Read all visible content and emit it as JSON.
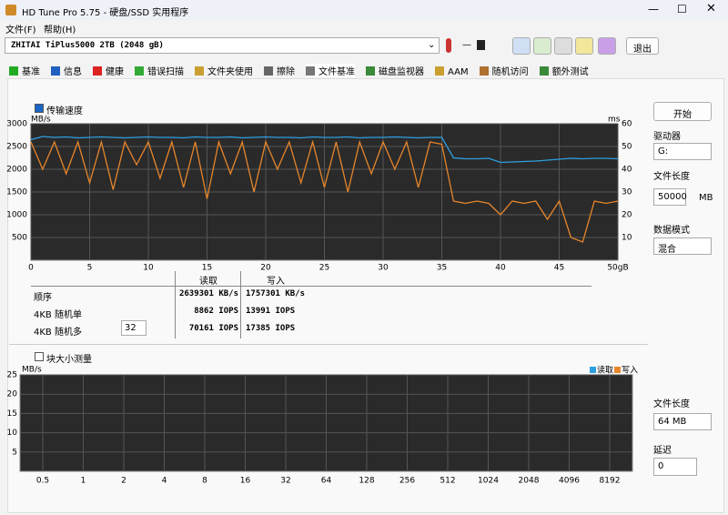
{
  "window": {
    "title": "HD Tune Pro 5.75 - 硬盘/SSD 实用程序"
  },
  "menu": [
    "文件(F)",
    "帮助(H)"
  ],
  "drive": "ZHITAI TiPlus5000 2TB (2048 gB)",
  "temperature": "—",
  "exit_button": "退出",
  "tabs": [
    "基准",
    "信息",
    "健康",
    "错误扫描",
    "文件夹使用",
    "擦除",
    "文件基准",
    "磁盘监视器",
    "AAM",
    "随机访问",
    "额外测试"
  ],
  "transfer": {
    "checkbox": "传输速度",
    "chart_data": {
      "type": "line",
      "y_label": "MB/s",
      "y2_label": "ms",
      "x": [
        0,
        1,
        2,
        3,
        4,
        5,
        6,
        7,
        8,
        9,
        10,
        11,
        12,
        13,
        14,
        15,
        16,
        17,
        18,
        19,
        20,
        21,
        22,
        23,
        24,
        25,
        26,
        27,
        28,
        29,
        30,
        31,
        32,
        33,
        34,
        35,
        36,
        37,
        38,
        39,
        40,
        41,
        42,
        43,
        44,
        45,
        46,
        47,
        48,
        49,
        50
      ],
      "series": [
        {
          "color": "#2f9fe0",
          "values": [
            2650,
            2720,
            2700,
            2710,
            2690,
            2700,
            2710,
            2700,
            2690,
            2700,
            2710,
            2700,
            2700,
            2690,
            2710,
            2700,
            2700,
            2710,
            2690,
            2700,
            2710,
            2700,
            2700,
            2690,
            2710,
            2700,
            2700,
            2710,
            2690,
            2700,
            2700,
            2710,
            2700,
            2690,
            2700,
            2700,
            2250,
            2230,
            2230,
            2240,
            2150,
            2160,
            2170,
            2180,
            2200,
            2220,
            2240,
            2230,
            2240,
            2240,
            2230
          ]
        },
        {
          "color": "#e8862a",
          "values": [
            2600,
            2000,
            2600,
            1900,
            2600,
            1700,
            2600,
            1550,
            2600,
            2100,
            2600,
            1800,
            2600,
            1600,
            2600,
            1350,
            2600,
            1900,
            2600,
            1500,
            2600,
            2000,
            2600,
            1700,
            2600,
            1600,
            2600,
            1500,
            2600,
            1900,
            2600,
            2000,
            2600,
            1600,
            2600,
            2550,
            1300,
            1250,
            1300,
            1250,
            1000,
            1300,
            1250,
            1300,
            900,
            1300,
            500,
            400,
            1300,
            1250,
            1300
          ]
        }
      ],
      "xlim": [
        0,
        50
      ],
      "xticks": [
        0,
        5,
        10,
        15,
        20,
        25,
        30,
        35,
        40,
        45,
        {
          "value": 50,
          "label": "50gB"
        }
      ],
      "ylim": [
        0,
        3000
      ],
      "yticks": [
        500,
        1000,
        1500,
        2000,
        2500,
        3000
      ],
      "y2lim": [
        0,
        60
      ],
      "y2ticks": [
        10,
        20,
        30,
        40,
        50,
        60
      ],
      "grid": true
    }
  },
  "results": {
    "headers": [
      "读取",
      "写入"
    ],
    "rows": [
      [
        "顺序",
        "2639301 KB/s",
        "1757301 KB/s"
      ],
      [
        "4KB 随机单",
        "8862 IOPS",
        "13991 IOPS"
      ],
      [
        "4KB 随机多",
        "70161 IOPS",
        "17385 IOPS"
      ]
    ],
    "queue_depth": "32"
  },
  "block": {
    "checkbox": "块大小测量",
    "chart_data": {
      "type": "line",
      "y_label": "MB/s",
      "categories": [
        "0.5",
        "1",
        "2",
        "4",
        "8",
        "16",
        "32",
        "64",
        "128",
        "256",
        "512",
        "1024",
        "2048",
        "4096",
        "8192"
      ],
      "series": [
        {
          "name": "读取",
          "color": "#2f9fe0",
          "values": [
            null,
            null,
            null,
            null,
            null,
            null,
            null,
            null,
            null,
            null,
            null,
            null,
            null,
            null,
            null
          ]
        },
        {
          "name": "写入",
          "color": "#e8862a",
          "values": [
            null,
            null,
            null,
            null,
            null,
            null,
            null,
            null,
            null,
            null,
            null,
            null,
            null,
            null,
            null
          ]
        }
      ],
      "ylim": [
        0,
        25
      ],
      "yticks": [
        5,
        10,
        15,
        20,
        25
      ],
      "grid": true
    }
  },
  "side": {
    "start": "开始",
    "drive_label": "驱动器",
    "drive": "G:",
    "file_length_label": "文件长度",
    "file_length": "50000",
    "file_length_unit": "MB",
    "data_mode_label": "数据模式",
    "data_mode": "混合",
    "block_file_length_label": "文件长度",
    "block_file_length": "64 MB",
    "delay_label": "延迟",
    "delay": "0"
  }
}
